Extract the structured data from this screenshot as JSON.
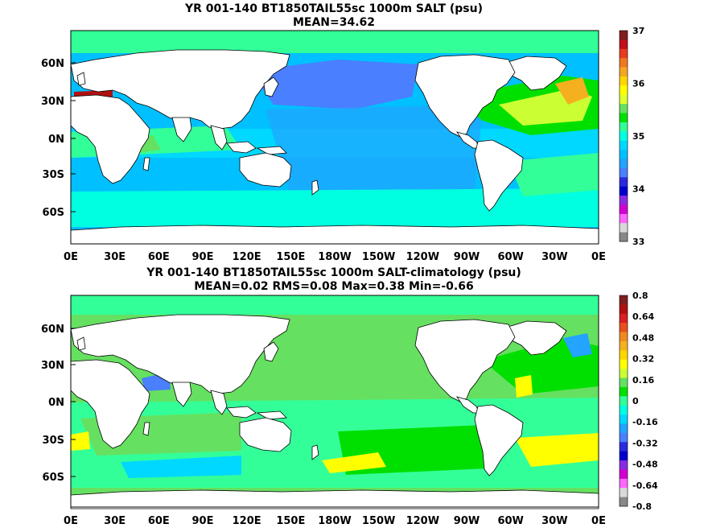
{
  "top_panel": {
    "title": "YR 001-140 BT1850TAIL55sc 1000m SALT (psu)",
    "subtitle": "MEAN=34.62",
    "lat_labels": [
      "60N",
      "30N",
      "0N",
      "30S",
      "60S"
    ],
    "lon_labels": [
      "0E",
      "30E",
      "60E",
      "90E",
      "120E",
      "150E",
      "180W",
      "150W",
      "120W",
      "90W",
      "60W",
      "30W",
      "0E"
    ],
    "colorbar_labels": [
      "37",
      "36",
      "35",
      "34",
      "33"
    ],
    "colorbar_colors": [
      "#7f1f1f",
      "#c0101a",
      "#e83c1e",
      "#f07820",
      "#f5a623",
      "#ffd700",
      "#ffff00",
      "#e0ff30",
      "#66e060",
      "#00e000",
      "#33ff99",
      "#00ffe0",
      "#00d8ff",
      "#00c0ff",
      "#22a4ff",
      "#4a7fff",
      "#2b2bdb",
      "#0000cc",
      "#8a2be2",
      "#d000d0",
      "#ff66ff",
      "#d8d8d8",
      "#888888"
    ]
  },
  "bottom_panel": {
    "title": "YR 001-140 BT1850TAIL55sc 1000m SALT-climatology (psu)",
    "subtitle": "MEAN=0.02   RMS=0.08   Max=0.38   Min=-0.66",
    "lat_labels": [
      "60N",
      "30N",
      "0N",
      "30S",
      "60S"
    ],
    "lon_labels": [
      "0E",
      "30E",
      "60E",
      "90E",
      "120E",
      "150E",
      "180W",
      "150W",
      "120W",
      "90W",
      "60W",
      "30W",
      "0E"
    ],
    "colorbar_labels": [
      "0.8",
      "0.64",
      "0.48",
      "0.32",
      "0.16",
      "0",
      "-0.16",
      "-0.32",
      "-0.48",
      "-0.64",
      "-0.8"
    ],
    "colorbar_colors": [
      "#7f1f1f",
      "#b01010",
      "#d82020",
      "#e8501e",
      "#f08a20",
      "#f5b020",
      "#ffd700",
      "#ffff00",
      "#ccff33",
      "#66e060",
      "#00e000",
      "#33ff99",
      "#00ffe0",
      "#00d8ff",
      "#22a4ff",
      "#4a7fff",
      "#2b2bdb",
      "#0000cc",
      "#8a2be2",
      "#d000d0",
      "#ff66ff",
      "#d8d8d8",
      "#888888"
    ]
  },
  "colors": {
    "land": "#ffffff",
    "mean_ocean_top": "#00c0ff",
    "mean_ocean_bottom": "#66e060",
    "coastline": "#000000"
  }
}
